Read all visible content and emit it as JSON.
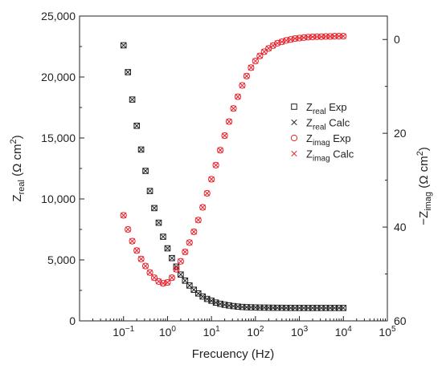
{
  "chart_data": {
    "type": "scatter",
    "xscale": "log",
    "xlim": [
      0.01,
      100000
    ],
    "x_ticks": [
      {
        "value": 0.1,
        "base": "10",
        "exp": "−1"
      },
      {
        "value": 1,
        "base": "10",
        "exp": "0"
      },
      {
        "value": 10,
        "base": "10",
        "exp": "1"
      },
      {
        "value": 100,
        "base": "10",
        "exp": "2"
      },
      {
        "value": 1000,
        "base": "10",
        "exp": "3"
      },
      {
        "value": 10000,
        "base": "10",
        "exp": "4"
      },
      {
        "value": 100000,
        "base": "10",
        "exp": "5"
      }
    ],
    "xlabel": "Frecuency (Hz)",
    "ylim_left": [
      0,
      25000
    ],
    "y_left_ticks": [
      {
        "value": 0,
        "label": "0"
      },
      {
        "value": 5000,
        "label": "5,000"
      },
      {
        "value": 10000,
        "label": "10,000"
      },
      {
        "value": 15000,
        "label": "15,000"
      },
      {
        "value": 20000,
        "label": "20,000"
      },
      {
        "value": 25000,
        "label": "25,000"
      }
    ],
    "ylabel_left": {
      "main": "Z",
      "sub": "real",
      "rest": " (Ω cm",
      "sup": "2",
      "end": ")"
    },
    "ylim_right": [
      60,
      -5
    ],
    "y_right_ticks": [
      {
        "value": 0,
        "label": "0"
      },
      {
        "value": 20,
        "label": "20"
      },
      {
        "value": 40,
        "label": "40"
      },
      {
        "value": 60,
        "label": "60"
      }
    ],
    "ylabel_right": {
      "main": "−Z",
      "sub": "imag",
      "rest": " (Ω cm",
      "sup": "2",
      "end": ")"
    },
    "colors": {
      "real": "#222222",
      "imag": "#e8202a"
    },
    "legend_position": "right-middle",
    "legend": [
      {
        "marker": "square",
        "series": "real",
        "main": "Z",
        "sub": "real",
        "rest": " Exp"
      },
      {
        "marker": "cross",
        "series": "real",
        "main": "Z",
        "sub": "real",
        "rest": " Calc"
      },
      {
        "marker": "circle",
        "series": "imag",
        "main": "Z",
        "sub": "imag",
        "rest": " Exp"
      },
      {
        "marker": "cross",
        "series": "imag",
        "main": "Z",
        "sub": "imag",
        "rest": " Calc"
      }
    ],
    "frequency": [
      0.1,
      0.126,
      0.158,
      0.2,
      0.251,
      0.316,
      0.398,
      0.501,
      0.631,
      0.794,
      1.0,
      1.259,
      1.585,
      1.995,
      2.512,
      3.162,
      3.981,
      5.012,
      6.31,
      7.943,
      10.0,
      12.59,
      15.85,
      19.95,
      25.12,
      31.62,
      39.81,
      50.12,
      63.1,
      79.43,
      100,
      125.9,
      158.5,
      199.5,
      251.2,
      316.2,
      398.1,
      501.2,
      631,
      794.3,
      1000,
      1259,
      1585,
      1995,
      2512,
      3162,
      3981,
      5012,
      6310,
      7943,
      10000
    ],
    "series": [
      {
        "key": "real",
        "values": [
          22600,
          20400,
          18150,
          16000,
          14050,
          12300,
          10650,
          9250,
          8050,
          6900,
          5950,
          5150,
          4450,
          3800,
          3300,
          2900,
          2550,
          2250,
          2000,
          1800,
          1650,
          1500,
          1400,
          1320,
          1260,
          1210,
          1170,
          1140,
          1120,
          1110,
          1100,
          1090,
          1085,
          1080,
          1075,
          1070,
          1070,
          1065,
          1065,
          1060,
          1060,
          1060,
          1060,
          1060,
          1060,
          1060,
          1060,
          1060,
          1060,
          1060,
          1060
        ]
      },
      {
        "key": "imag",
        "values": [
          37.5,
          40.5,
          43.0,
          45.0,
          46.8,
          48.3,
          49.7,
          50.8,
          51.6,
          52.0,
          51.8,
          50.8,
          49.0,
          47.3,
          45.3,
          43.3,
          41.0,
          38.5,
          35.8,
          32.8,
          29.8,
          26.8,
          23.6,
          20.5,
          17.5,
          14.7,
          12.2,
          9.8,
          7.8,
          6.0,
          4.6,
          3.5,
          2.6,
          1.9,
          1.3,
          0.8,
          0.5,
          0.2,
          0.0,
          -0.2,
          -0.3,
          -0.4,
          -0.5,
          -0.55,
          -0.6,
          -0.6,
          -0.65,
          -0.65,
          -0.7,
          -0.7,
          -0.7
        ]
      }
    ]
  }
}
